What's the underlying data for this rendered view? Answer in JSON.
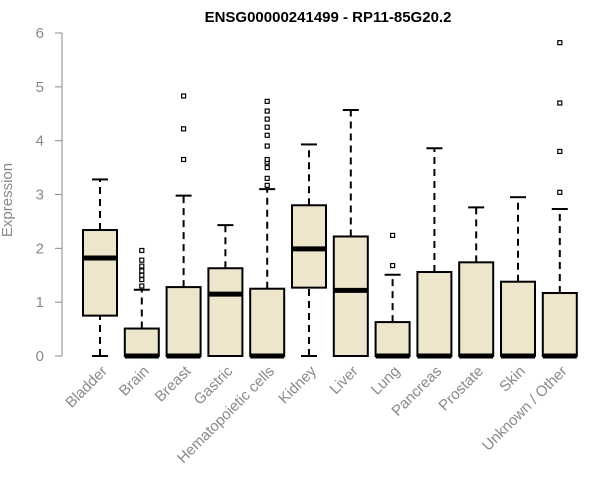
{
  "chart_data": {
    "type": "boxplot",
    "title": "ENSG00000241499 - RP11-85G20.2",
    "xlabel": "",
    "ylabel": "Expression",
    "ylim": [
      0,
      6
    ],
    "yticks": [
      "0",
      "1",
      "2",
      "3",
      "4",
      "5",
      "6"
    ],
    "grid": false,
    "colors": {
      "box_fill": "#ede6cc",
      "box_stroke": "#000000",
      "median": "#000000",
      "axis": "#8a8a8a",
      "label": "#8a8a8a"
    },
    "categories": [
      "Bladder",
      "Brain",
      "Breast",
      "Gastric",
      "Hematopoietic cells",
      "Kidney",
      "Liver",
      "Lung",
      "Pancreas",
      "Prostate",
      "Skin",
      "Unknown / Other"
    ],
    "boxes": [
      {
        "category": "Bladder",
        "whisker_low": 0,
        "q1": 0.75,
        "median": 1.82,
        "q3": 2.34,
        "whisker_high": 3.28,
        "outliers": []
      },
      {
        "category": "Brain",
        "whisker_low": 0,
        "q1": 0,
        "median": 0,
        "q3": 0.51,
        "whisker_high": 1.23,
        "outliers": [
          1.3,
          1.42,
          1.5,
          1.58,
          1.67,
          1.78,
          1.96
        ]
      },
      {
        "category": "Breast",
        "whisker_low": 0,
        "q1": 0,
        "median": 0,
        "q3": 1.28,
        "whisker_high": 2.98,
        "outliers": [
          3.65,
          4.22,
          4.83
        ]
      },
      {
        "category": "Gastric",
        "whisker_low": 0,
        "q1": 0,
        "median": 1.15,
        "q3": 1.63,
        "whisker_high": 2.43,
        "outliers": []
      },
      {
        "category": "Hematopoietic cells",
        "whisker_low": 0,
        "q1": 0,
        "median": 0,
        "q3": 1.25,
        "whisker_high": 3.1,
        "outliers": [
          3.17,
          3.3,
          3.5,
          3.6,
          3.65,
          3.9,
          4.1,
          4.25,
          4.4,
          4.55,
          4.73
        ]
      },
      {
        "category": "Kidney",
        "whisker_low": 0,
        "q1": 1.27,
        "median": 1.99,
        "q3": 2.8,
        "whisker_high": 3.93,
        "outliers": []
      },
      {
        "category": "Liver",
        "whisker_low": 0,
        "q1": 0,
        "median": 1.22,
        "q3": 2.22,
        "whisker_high": 4.57,
        "outliers": []
      },
      {
        "category": "Lung",
        "whisker_low": 0,
        "q1": 0,
        "median": 0,
        "q3": 0.63,
        "whisker_high": 1.51,
        "outliers": [
          1.68,
          2.24
        ]
      },
      {
        "category": "Pancreas",
        "whisker_low": 0,
        "q1": 0,
        "median": 0,
        "q3": 1.56,
        "whisker_high": 3.86,
        "outliers": []
      },
      {
        "category": "Prostate",
        "whisker_low": 0,
        "q1": 0,
        "median": 0,
        "q3": 1.74,
        "whisker_high": 2.76,
        "outliers": []
      },
      {
        "category": "Skin",
        "whisker_low": 0,
        "q1": 0,
        "median": 0,
        "q3": 1.38,
        "whisker_high": 2.95,
        "outliers": []
      },
      {
        "category": "Unknown / Other",
        "whisker_low": 0,
        "q1": 0,
        "median": 0,
        "q3": 1.17,
        "whisker_high": 2.73,
        "outliers": [
          3.04,
          3.8,
          4.7,
          5.82
        ]
      }
    ]
  }
}
